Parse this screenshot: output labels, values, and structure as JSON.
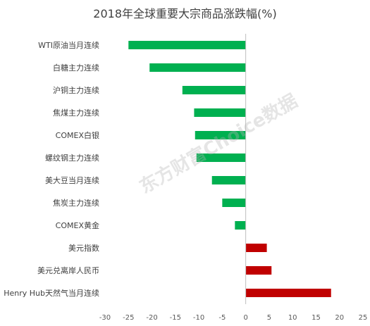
{
  "chart_data": {
    "type": "bar",
    "orientation": "horizontal",
    "title": "2018年全球重要大宗商品涨跌幅(%)",
    "categories": [
      "WTI原油当月连续",
      "白糖主力连续",
      "沪铜主力连续",
      "焦煤主力连续",
      "COMEX白银",
      "螺纹钢主力连续",
      "美大豆当月连续",
      "焦炭主力连续",
      "COMEX黄金",
      "美元指数",
      "美元兑离岸人民币",
      "Henry Hub天然气当月连续"
    ],
    "values": [
      -25,
      -20.5,
      -13.5,
      -11,
      -10.8,
      -10.5,
      -7.2,
      -5,
      -2.3,
      4.5,
      5.5,
      18.2
    ],
    "xlim": [
      -30,
      25
    ],
    "xticks": [
      -30,
      -25,
      -20,
      -15,
      -10,
      -5,
      0,
      5,
      10,
      15,
      20,
      25
    ],
    "grid": false,
    "legend": "none",
    "colors": {
      "negative": "#00b050",
      "positive": "#c00000"
    }
  },
  "watermark": "东方财富Choice数据"
}
